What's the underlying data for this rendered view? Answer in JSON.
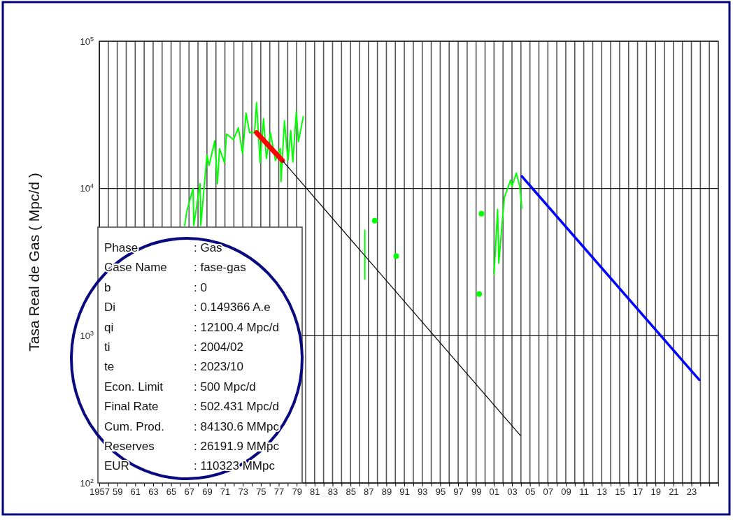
{
  "chart_data": {
    "type": "line",
    "ylabel": "Tasa Real de Gas ( Mpc/d )",
    "log": "y",
    "grid": true,
    "xlim": [
      1957,
      2026
    ],
    "xticks": [
      {
        "value": 1957,
        "label": "1957"
      },
      {
        "value": 1958,
        "label": null
      },
      {
        "value": 1959,
        "label": "59"
      },
      {
        "value": 1960,
        "label": null
      },
      {
        "value": 1961,
        "label": "61"
      },
      {
        "value": 1962,
        "label": null
      },
      {
        "value": 1963,
        "label": "63"
      },
      {
        "value": 1964,
        "label": null
      },
      {
        "value": 1965,
        "label": "65"
      },
      {
        "value": 1966,
        "label": null
      },
      {
        "value": 1967,
        "label": "67"
      },
      {
        "value": 1968,
        "label": null
      },
      {
        "value": 1969,
        "label": "69"
      },
      {
        "value": 1970,
        "label": null
      },
      {
        "value": 1971,
        "label": "71"
      },
      {
        "value": 1972,
        "label": null
      },
      {
        "value": 1973,
        "label": "73"
      },
      {
        "value": 1974,
        "label": null
      },
      {
        "value": 1975,
        "label": "75"
      },
      {
        "value": 1976,
        "label": null
      },
      {
        "value": 1977,
        "label": "77"
      },
      {
        "value": 1978,
        "label": null
      },
      {
        "value": 1979,
        "label": "79"
      },
      {
        "value": 1980,
        "label": null
      },
      {
        "value": 1981,
        "label": "81"
      },
      {
        "value": 1982,
        "label": null
      },
      {
        "value": 1983,
        "label": "83"
      },
      {
        "value": 1984,
        "label": null
      },
      {
        "value": 1985,
        "label": "85"
      },
      {
        "value": 1986,
        "label": null
      },
      {
        "value": 1987,
        "label": "87"
      },
      {
        "value": 1988,
        "label": null
      },
      {
        "value": 1989,
        "label": "89"
      },
      {
        "value": 1990,
        "label": null
      },
      {
        "value": 1991,
        "label": "91"
      },
      {
        "value": 1992,
        "label": null
      },
      {
        "value": 1993,
        "label": "93"
      },
      {
        "value": 1994,
        "label": null
      },
      {
        "value": 1995,
        "label": "95"
      },
      {
        "value": 1996,
        "label": null
      },
      {
        "value": 1997,
        "label": "97"
      },
      {
        "value": 1998,
        "label": null
      },
      {
        "value": 1999,
        "label": "99"
      },
      {
        "value": 2000,
        "label": null
      },
      {
        "value": 2001,
        "label": "01"
      },
      {
        "value": 2002,
        "label": null
      },
      {
        "value": 2003,
        "label": "03"
      },
      {
        "value": 2004,
        "label": null
      },
      {
        "value": 2005,
        "label": "05"
      },
      {
        "value": 2006,
        "label": null
      },
      {
        "value": 2007,
        "label": "07"
      },
      {
        "value": 2008,
        "label": null
      },
      {
        "value": 2009,
        "label": "09"
      },
      {
        "value": 2010,
        "label": null
      },
      {
        "value": 2011,
        "label": "11"
      },
      {
        "value": 2012,
        "label": null
      },
      {
        "value": 2013,
        "label": "13"
      },
      {
        "value": 2014,
        "label": null
      },
      {
        "value": 2015,
        "label": "15"
      },
      {
        "value": 2016,
        "label": null
      },
      {
        "value": 2017,
        "label": "17"
      },
      {
        "value": 2018,
        "label": null
      },
      {
        "value": 2019,
        "label": "19"
      },
      {
        "value": 2020,
        "label": null
      },
      {
        "value": 2021,
        "label": "21"
      },
      {
        "value": 2022,
        "label": null
      },
      {
        "value": 2023,
        "label": "23"
      },
      {
        "value": 2024,
        "label": null
      },
      {
        "value": 2025,
        "label": null
      }
    ],
    "ylim": [
      100,
      100000
    ],
    "yticks": [
      {
        "value": 100,
        "label": "10$^{2}$"
      },
      {
        "value": 1000,
        "label": "10$^{3}$"
      },
      {
        "value": 10000,
        "label": "10$^{4}$"
      },
      {
        "value": 100000,
        "label": "10$^{5}$"
      }
    ],
    "series": [
      {
        "color": "#00ff00",
        "x": [
          1966.51,
          1966.75,
          1967.45,
          1967.53,
          1968.23,
          1968.31,
          1969.0,
          1969.24,
          1969.86,
          1970.17,
          1970.4,
          1970.95,
          1971.18,
          1971.96,
          1972.5,
          1972.97,
          1973.36,
          1973.75,
          1974.3,
          1974.53,
          1974.92,
          1975.31,
          1975.62,
          1976.08,
          1976.63,
          1977.17,
          1977.25,
          1977.64,
          1978.03,
          1978.34,
          1978.57,
          1978.96,
          1979.2,
          1979.74,
          1983,
          1986.6,
          1986.6,
          1995,
          2001.0,
          2001.4,
          2001.53,
          2001.92,
          2002.15,
          2002.85,
          2003.0,
          2003.48,
          2003.87,
          2004.1
        ],
        "values": [
          5610,
          6980,
          10000,
          5610,
          10790,
          5610,
          16870,
          14320,
          20990,
          10790,
          18620,
          14960,
          23450,
          21480,
          25820,
          17260,
          32500,
          23930,
          23930,
          38280,
          14960,
          29790,
          15990,
          23930,
          15490,
          18620,
          11130,
          28840,
          15490,
          24720,
          15140,
          33190,
          20800,
          30760,
          null,
          5200,
          2420,
          null,
          2610,
          7210,
          3110,
          5980,
          8670,
          11400,
          10330,
          12700,
          10330,
          7360
        ]
      },
      {
        "type": "scatter",
        "color": "#00ff00",
        "x": [
          1987.7,
          1990.1,
          1999.35,
          1999.6
        ],
        "values": [
          6050,
          3470,
          1920,
          6750
        ]
      },
      {
        "color": "#ff0000",
        "x": [
          1974.53,
          1977.41
        ],
        "values": [
          23930,
          15490
        ]
      },
      {
        "color": "#000000",
        "x": [
          1977.41,
          2003.94
        ],
        "values": [
          15490,
          210
        ]
      },
      {
        "color": "#0000ff",
        "x": [
          2004.1,
          2023.87
        ],
        "values": [
          12100,
          502
        ]
      }
    ],
    "annotations": [
      "Phase : Gas",
      "Case Name : fase-gas",
      "b : 0",
      "Di : 0.149366 A.e",
      "qi : 12100.4 Mpc/d",
      "ti : 2004/02",
      "te : 2023/10",
      "Econ. Limit : 500 Mpc/d",
      "Final Rate : 502.431 Mpc/d",
      "Cum. Prod. : 84130.6 MMpc",
      "Reserves : 26191.9 MMpc",
      "EUR : 110323 MMpc"
    ]
  }
}
